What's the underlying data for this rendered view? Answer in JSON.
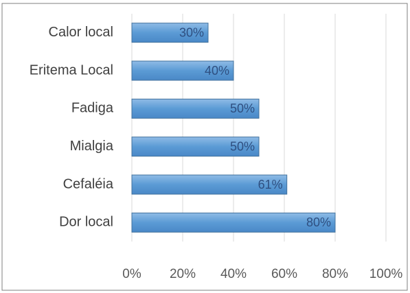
{
  "chart_data": {
    "type": "bar",
    "orientation": "horizontal",
    "categories": [
      "Calor local",
      "Eritema Local",
      "Fadiga",
      "Mialgia",
      "Cefaléia",
      "Dor local"
    ],
    "values": [
      30,
      40,
      50,
      50,
      61,
      80
    ],
    "value_labels": [
      "30%",
      "40%",
      "50%",
      "50%",
      "61%",
      "80%"
    ],
    "color": "#5b9bd5",
    "xlim": [
      0,
      100
    ],
    "xticks": [
      {
        "value": 0,
        "label": "0%"
      },
      {
        "value": 20,
        "label": "20%"
      },
      {
        "value": 40,
        "label": "40%"
      },
      {
        "value": 60,
        "label": "60%"
      },
      {
        "value": 80,
        "label": "80%"
      },
      {
        "value": 100,
        "label": "100%"
      }
    ],
    "grid": true
  }
}
